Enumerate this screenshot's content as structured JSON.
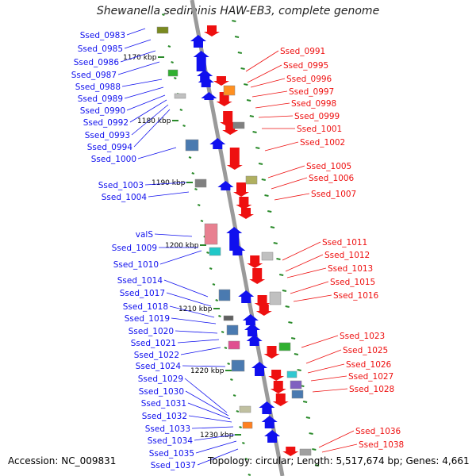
{
  "title": "Shewanella sediminis HAW-EB3, complete genome",
  "accession": "Accession: NC_009831",
  "topology": "Topology: circular; Length: 5,517,674 bp; Genes: 4,661",
  "colors": {
    "minus": "#1010ee",
    "plus": "#ee1010",
    "backbone": "#9a9a9a",
    "tick": "#2a8a2a",
    "rna": "#e88090"
  },
  "scale_labels": [
    "1170 kbp",
    "1180 kbp",
    "1190 kbp",
    "1200 kbp",
    "1210 kbp",
    "1220 kbp",
    "1230 kbp"
  ],
  "left_genes": [
    "Ssed_0983",
    "Ssed_0985",
    "Ssed_0986",
    "Ssed_0987",
    "Ssed_0988",
    "Ssed_0989",
    "Ssed_0990",
    "Ssed_0992",
    "Ssed_0993",
    "Ssed_0994",
    "Ssed_1000",
    "Ssed_1003",
    "Ssed_1004",
    "valS",
    "Ssed_1009",
    "Ssed_1010",
    "Ssed_1014",
    "Ssed_1017",
    "Ssed_1018",
    "Ssed_1019",
    "Ssed_1020",
    "Ssed_1021",
    "Ssed_1022",
    "Ssed_1024",
    "Ssed_1029",
    "Ssed_1030",
    "Ssed_1031",
    "Ssed_1032",
    "Ssed_1033",
    "Ssed_1034",
    "Ssed_1035",
    "Ssed_1037"
  ],
  "right_genes": [
    "Ssed_0991",
    "Ssed_0995",
    "Ssed_0996",
    "Ssed_0997",
    "Ssed_0998",
    "Ssed_0999",
    "Ssed_1001",
    "Ssed_1002",
    "Ssed_1005",
    "Ssed_1006",
    "Ssed_1007",
    "Ssed_1011",
    "Ssed_1012",
    "Ssed_1013",
    "Ssed_1015",
    "Ssed_1016",
    "Ssed_1023",
    "Ssed_1025",
    "Ssed_1026",
    "Ssed_1027",
    "Ssed_1028",
    "Ssed_1036",
    "Ssed_1038"
  ]
}
